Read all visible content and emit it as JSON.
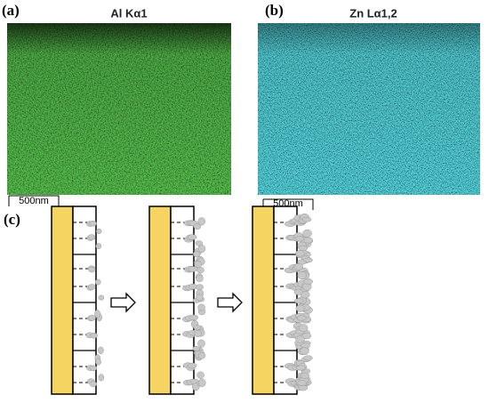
{
  "panels": [
    {
      "label": "(a)",
      "title": "Al Kα1",
      "scale_bar": "500nm"
    },
    {
      "label": "(b)",
      "title": "Zn Lα1,2",
      "scale_bar": "500nm"
    }
  ],
  "schematic": {
    "label": "(c)"
  }
}
